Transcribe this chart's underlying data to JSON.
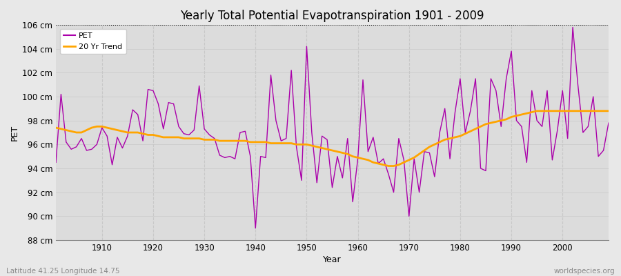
{
  "title": "Yearly Total Potential Evapotranspiration 1901 - 2009",
  "xlabel": "Year",
  "ylabel": "PET",
  "subtitle_left": "Latitude 41.25 Longitude 14.75",
  "subtitle_right": "worldspecies.org",
  "ylim": [
    88,
    106
  ],
  "xlim": [
    1901,
    2009
  ],
  "ytick_labels": [
    "88 cm",
    "90 cm",
    "92 cm",
    "94 cm",
    "96 cm",
    "98 cm",
    "100 cm",
    "102 cm",
    "104 cm",
    "106 cm"
  ],
  "ytick_vals": [
    88,
    90,
    92,
    94,
    96,
    98,
    100,
    102,
    104,
    106
  ],
  "xtick_vals": [
    1910,
    1920,
    1930,
    1940,
    1950,
    1960,
    1970,
    1980,
    1990,
    2000
  ],
  "pet_color": "#AA00AA",
  "trend_color": "#FFA500",
  "bg_color": "#E8E8E8",
  "plot_bg": "#DCDCDC",
  "grid_color": "#C8C8C8",
  "top_line_val": 106,
  "legend_labels": [
    "PET",
    "20 Yr Trend"
  ],
  "pet_data": {
    "years": [
      1901,
      1902,
      1903,
      1904,
      1905,
      1906,
      1907,
      1908,
      1909,
      1910,
      1911,
      1912,
      1913,
      1914,
      1915,
      1916,
      1917,
      1918,
      1919,
      1920,
      1921,
      1922,
      1923,
      1924,
      1925,
      1926,
      1927,
      1928,
      1929,
      1930,
      1931,
      1932,
      1933,
      1934,
      1935,
      1936,
      1937,
      1938,
      1939,
      1940,
      1941,
      1942,
      1943,
      1944,
      1945,
      1946,
      1947,
      1948,
      1949,
      1950,
      1951,
      1952,
      1953,
      1954,
      1955,
      1956,
      1957,
      1958,
      1959,
      1960,
      1961,
      1962,
      1963,
      1964,
      1965,
      1966,
      1967,
      1968,
      1969,
      1970,
      1971,
      1972,
      1973,
      1974,
      1975,
      1976,
      1977,
      1978,
      1979,
      1980,
      1981,
      1982,
      1983,
      1984,
      1985,
      1986,
      1987,
      1988,
      1989,
      1990,
      1991,
      1992,
      1993,
      1994,
      1995,
      1996,
      1997,
      1998,
      1999,
      2000,
      2001,
      2002,
      2003,
      2004,
      2005,
      2006,
      2007,
      2008,
      2009
    ],
    "values": [
      94.5,
      100.2,
      96.2,
      95.6,
      95.8,
      96.5,
      95.5,
      95.6,
      96.0,
      97.4,
      96.7,
      94.3,
      96.6,
      95.7,
      96.7,
      98.9,
      98.5,
      96.3,
      100.6,
      100.5,
      99.4,
      97.3,
      99.5,
      99.4,
      97.5,
      96.9,
      96.8,
      97.2,
      100.9,
      97.3,
      96.8,
      96.5,
      95.1,
      94.9,
      95.0,
      94.8,
      97.0,
      97.1,
      95.0,
      89.0,
      95.0,
      94.9,
      101.8,
      98.0,
      96.3,
      96.5,
      102.2,
      95.8,
      93.0,
      104.2,
      97.0,
      92.8,
      96.7,
      96.4,
      92.4,
      95.0,
      93.2,
      96.5,
      91.2,
      94.8,
      101.4,
      95.4,
      96.6,
      94.4,
      94.8,
      93.5,
      92.0,
      96.5,
      94.7,
      90.0,
      94.8,
      92.0,
      95.4,
      95.3,
      93.3,
      97.0,
      99.0,
      94.8,
      98.7,
      101.5,
      97.0,
      98.8,
      101.5,
      94.0,
      93.8,
      101.5,
      100.5,
      97.5,
      101.5,
      103.8,
      98.0,
      97.5,
      94.5,
      100.5,
      98.0,
      97.5,
      100.5,
      94.7,
      97.2,
      100.5,
      96.5,
      105.8,
      101.0,
      97.0,
      97.5,
      100.0,
      95.0,
      95.5,
      97.8
    ]
  },
  "trend_data": {
    "years": [
      1901,
      1902,
      1903,
      1904,
      1905,
      1906,
      1907,
      1908,
      1909,
      1910,
      1911,
      1912,
      1913,
      1914,
      1915,
      1916,
      1917,
      1918,
      1919,
      1920,
      1921,
      1922,
      1923,
      1924,
      1925,
      1926,
      1927,
      1928,
      1929,
      1930,
      1931,
      1932,
      1933,
      1934,
      1935,
      1936,
      1937,
      1938,
      1939,
      1940,
      1941,
      1942,
      1943,
      1944,
      1945,
      1946,
      1947,
      1948,
      1949,
      1950,
      1951,
      1952,
      1953,
      1954,
      1955,
      1956,
      1957,
      1958,
      1959,
      1960,
      1961,
      1962,
      1963,
      1964,
      1965,
      1966,
      1967,
      1968,
      1969,
      1970,
      1971,
      1972,
      1973,
      1974,
      1975,
      1976,
      1977,
      1978,
      1979,
      1980,
      1981,
      1982,
      1983,
      1984,
      1985,
      1986,
      1987,
      1988,
      1989,
      1990,
      1991,
      1992,
      1993,
      1994,
      1995,
      1996,
      1997,
      1998,
      1999,
      2000,
      2001,
      2002,
      2003,
      2004,
      2005,
      2006,
      2007,
      2008,
      2009
    ],
    "values": [
      97.4,
      97.3,
      97.2,
      97.1,
      97.0,
      97.0,
      97.2,
      97.4,
      97.5,
      97.5,
      97.4,
      97.3,
      97.2,
      97.1,
      97.0,
      97.0,
      97.0,
      96.9,
      96.8,
      96.8,
      96.7,
      96.6,
      96.6,
      96.6,
      96.6,
      96.5,
      96.5,
      96.5,
      96.5,
      96.4,
      96.4,
      96.4,
      96.3,
      96.3,
      96.3,
      96.3,
      96.3,
      96.3,
      96.2,
      96.2,
      96.2,
      96.2,
      96.1,
      96.1,
      96.1,
      96.1,
      96.1,
      96.0,
      96.0,
      96.0,
      95.9,
      95.8,
      95.7,
      95.6,
      95.5,
      95.4,
      95.3,
      95.2,
      95.0,
      94.9,
      94.8,
      94.7,
      94.5,
      94.4,
      94.3,
      94.2,
      94.2,
      94.3,
      94.5,
      94.7,
      94.9,
      95.2,
      95.5,
      95.8,
      96.0,
      96.2,
      96.4,
      96.5,
      96.6,
      96.7,
      96.9,
      97.1,
      97.3,
      97.5,
      97.7,
      97.8,
      97.9,
      98.0,
      98.1,
      98.3,
      98.4,
      98.5,
      98.6,
      98.7,
      98.8,
      98.8,
      98.8,
      98.8,
      98.8,
      98.8,
      98.8,
      98.8,
      98.8,
      98.8,
      98.8,
      98.8,
      98.8,
      98.8,
      98.8
    ]
  }
}
